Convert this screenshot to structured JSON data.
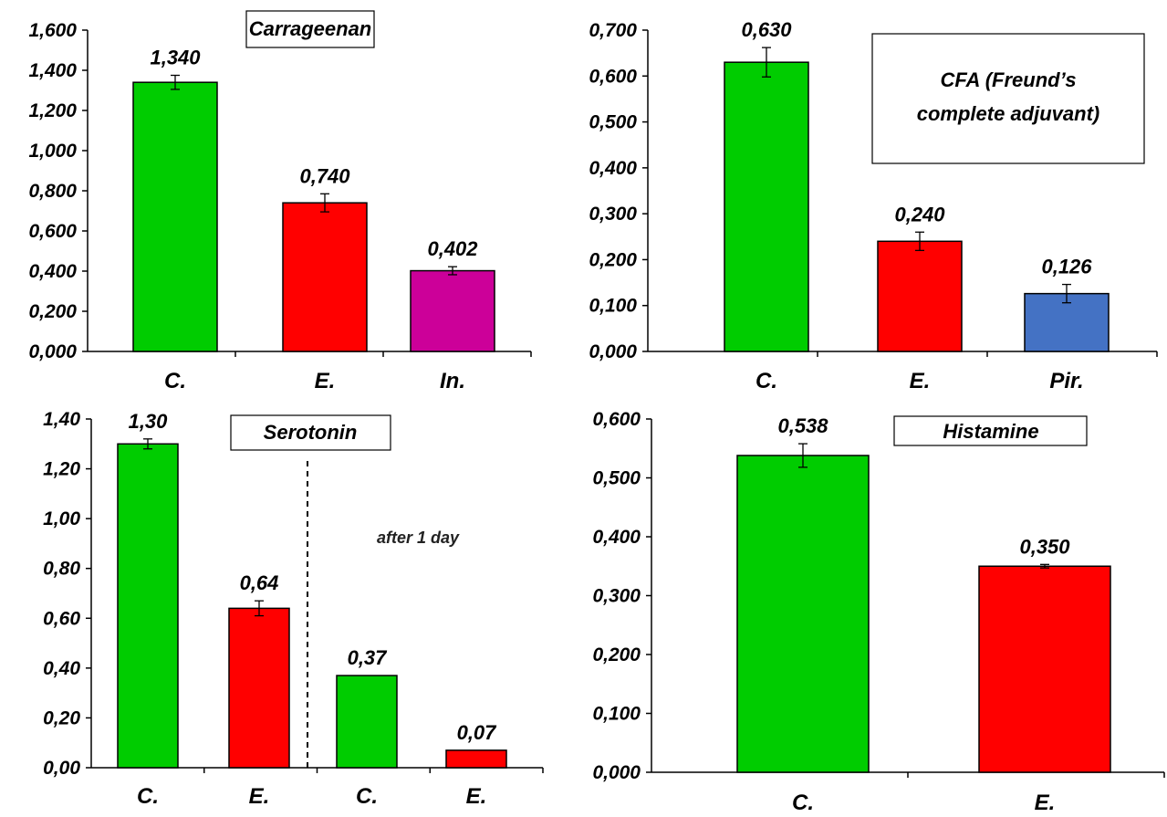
{
  "chart_data": [
    {
      "type": "bar",
      "title": "Carrageenan",
      "categories": [
        "C.",
        "E.",
        "In."
      ],
      "values": [
        1.34,
        0.74,
        0.402
      ],
      "value_labels": [
        "1,340",
        "0,740",
        "0,402"
      ],
      "errors": [
        0.035,
        0.045,
        0.02
      ],
      "colors": [
        "#00cc00",
        "#ff0000",
        "#cc0099"
      ],
      "ylim": [
        0,
        1.6
      ],
      "yticks": [
        "0,000",
        "0,200",
        "0,400",
        "0,600",
        "0,800",
        "1,000",
        "1,200",
        "1,400",
        "1,600"
      ],
      "xlabel": "",
      "ylabel": ""
    },
    {
      "type": "bar",
      "title": "CFA (Freund’s complete adjuvant)",
      "title_lines": [
        "CFA (Freund’s",
        "complete adjuvant)"
      ],
      "categories": [
        "C.",
        "E.",
        "Pir."
      ],
      "values": [
        0.63,
        0.24,
        0.126
      ],
      "value_labels": [
        "0,630",
        "0,240",
        "0,126"
      ],
      "errors": [
        0.032,
        0.02,
        0.02
      ],
      "colors": [
        "#00cc00",
        "#ff0000",
        "#4472c4"
      ],
      "ylim": [
        0,
        0.7
      ],
      "yticks": [
        "0,000",
        "0,100",
        "0,200",
        "0,300",
        "0,400",
        "0,500",
        "0,600",
        "0,700"
      ],
      "xlabel": "",
      "ylabel": ""
    },
    {
      "type": "bar",
      "title": "Serotonin",
      "annotation": "after 1 day",
      "categories": [
        "C.",
        "E.",
        "C.",
        "E."
      ],
      "values": [
        1.3,
        0.64,
        0.37,
        0.07
      ],
      "value_labels": [
        "1,30",
        "0,64",
        "0,37",
        "0,07"
      ],
      "errors": [
        0.02,
        0.03,
        0.0,
        0.0
      ],
      "colors": [
        "#00cc00",
        "#ff0000",
        "#00cc00",
        "#ff0000"
      ],
      "ylim": [
        0,
        1.4
      ],
      "yticks": [
        "0,00",
        "0,20",
        "0,40",
        "0,60",
        "0,80",
        "1,00",
        "1,20",
        "1,40"
      ],
      "xlabel": "",
      "ylabel": ""
    },
    {
      "type": "bar",
      "title": "Histamine",
      "categories": [
        "C.",
        "E."
      ],
      "values": [
        0.538,
        0.35
      ],
      "value_labels": [
        "0,538",
        "0,350"
      ],
      "errors": [
        0.02,
        0.003
      ],
      "colors": [
        "#00cc00",
        "#ff0000"
      ],
      "ylim": [
        0,
        0.6
      ],
      "yticks": [
        "0,000",
        "0,100",
        "0,200",
        "0,300",
        "0,400",
        "0,500",
        "0,600"
      ],
      "xlabel": "",
      "ylabel": ""
    }
  ]
}
